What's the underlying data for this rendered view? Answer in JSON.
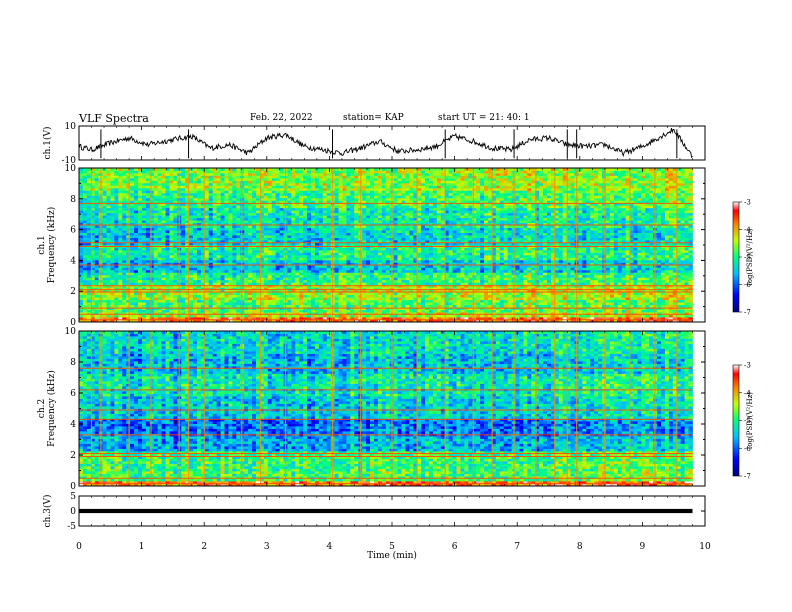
{
  "header": {
    "title": "VLF Spectra",
    "date": "Feb. 22, 2022",
    "station": "station= KAP",
    "start": "start  UT  =   21: 40: 1"
  },
  "chart_data": [
    {
      "type": "line",
      "panel": "ch1-waveform",
      "ylabel": "ch.1(V)",
      "ylim": [
        -10,
        10
      ],
      "y_ticks": [
        "10",
        "-10"
      ],
      "xlim": [
        0,
        10
      ],
      "x_end": 9.8,
      "envelope": {
        "x": [
          0,
          0.2,
          0.5,
          0.8,
          1.1,
          1.5,
          1.8,
          2.1,
          2.4,
          2.7,
          3.0,
          3.3,
          3.6,
          3.9,
          4.2,
          4.5,
          4.8,
          5.1,
          5.4,
          5.7,
          6.0,
          6.3,
          6.6,
          6.9,
          7.2,
          7.5,
          7.8,
          8.1,
          8.4,
          8.7,
          9.0,
          9.3,
          9.5,
          9.8
        ],
        "y": [
          -2,
          -4,
          0,
          3,
          -1,
          2,
          4,
          -3,
          -1,
          -6,
          3,
          5,
          -2,
          -4,
          -6,
          -3,
          1,
          -5,
          -4,
          -2,
          4,
          1,
          -3,
          -4,
          2,
          3,
          -1,
          -2,
          -1,
          -6,
          -2,
          4,
          8,
          -8
        ]
      },
      "spikes_x": [
        0.35,
        1.75,
        4.05,
        5.85,
        6.95,
        7.8,
        7.95,
        9.55
      ]
    },
    {
      "type": "heatmap",
      "panel": "ch1-spectrogram",
      "ylabel": "ch.1\nFrequency (kHz)",
      "ylim": [
        0,
        10
      ],
      "y_ticks": [
        0,
        2,
        4,
        6,
        8,
        10
      ],
      "xlim": [
        0,
        10
      ],
      "x_end": 9.8,
      "colorbar": {
        "range": [
          -7,
          -3
        ],
        "ticks": [
          -7,
          -6,
          -5,
          -4,
          -3
        ],
        "label": "log(PSD)(V²/Hz)"
      },
      "band_levels": [
        {
          "f": [
            0.0,
            0.3
          ],
          "v": -3.8
        },
        {
          "f": [
            0.3,
            0.7
          ],
          "v": -4.6
        },
        {
          "f": [
            0.7,
            1.5
          ],
          "v": -4.9
        },
        {
          "f": [
            1.5,
            2.4
          ],
          "v": -4.6
        },
        {
          "f": [
            2.4,
            3.3
          ],
          "v": -5.1
        },
        {
          "f": [
            3.3,
            4.1
          ],
          "v": -5.6
        },
        {
          "f": [
            4.1,
            5.0
          ],
          "v": -5.2
        },
        {
          "f": [
            5.0,
            6.2
          ],
          "v": -5.5
        },
        {
          "f": [
            6.2,
            7.5
          ],
          "v": -5.3
        },
        {
          "f": [
            7.5,
            8.6
          ],
          "v": -5.0
        },
        {
          "f": [
            8.6,
            10.0
          ],
          "v": -4.7
        }
      ],
      "lines_khz": [
        0.15,
        0.5,
        0.9,
        1.95,
        2.1,
        2.35,
        3.7,
        4.9,
        5.15,
        6.3,
        7.7
      ],
      "spikes_x": [
        0.2,
        0.35,
        0.8,
        1.15,
        1.6,
        1.75,
        2.0,
        2.6,
        2.9,
        3.3,
        4.05,
        4.5,
        5.0,
        5.4,
        5.85,
        6.3,
        6.6,
        6.95,
        7.3,
        7.6,
        7.8,
        7.95,
        8.4,
        8.8,
        9.2,
        9.55
      ]
    },
    {
      "type": "heatmap",
      "panel": "ch2-spectrogram",
      "ylabel": "ch.2\nFrequency (kHz)",
      "ylim": [
        0,
        10
      ],
      "y_ticks": [
        0,
        2,
        4,
        6,
        8,
        10
      ],
      "xlim": [
        0,
        10
      ],
      "x_end": 9.8,
      "colorbar": {
        "range": [
          -7,
          -3
        ],
        "ticks": [
          -7,
          -6,
          -5,
          -4,
          -3
        ],
        "label": "log(PSD)(V²/Hz)"
      },
      "band_levels": [
        {
          "f": [
            0.0,
            0.3
          ],
          "v": -3.8
        },
        {
          "f": [
            0.3,
            1.0
          ],
          "v": -4.9
        },
        {
          "f": [
            1.0,
            2.2
          ],
          "v": -5.0
        },
        {
          "f": [
            2.2,
            3.3
          ],
          "v": -5.7
        },
        {
          "f": [
            3.3,
            4.4
          ],
          "v": -6.0
        },
        {
          "f": [
            4.4,
            5.8
          ],
          "v": -5.5
        },
        {
          "f": [
            5.8,
            7.2
          ],
          "v": -5.3
        },
        {
          "f": [
            7.2,
            8.5
          ],
          "v": -5.6
        },
        {
          "f": [
            8.5,
            10.0
          ],
          "v": -5.4
        }
      ],
      "lines_khz": [
        0.15,
        0.5,
        1.9,
        2.1,
        3.3,
        4.3,
        4.9,
        6.2,
        7.6
      ],
      "spikes_x": [
        0.2,
        0.35,
        0.8,
        1.15,
        1.6,
        1.75,
        2.0,
        2.6,
        2.9,
        3.3,
        4.05,
        4.5,
        5.0,
        5.4,
        5.85,
        6.3,
        6.6,
        6.95,
        7.3,
        7.6,
        7.8,
        7.95,
        8.4,
        8.8,
        9.2,
        9.55
      ]
    },
    {
      "type": "line",
      "panel": "ch3-waveform",
      "ylabel": "ch.3(V)",
      "ylim": [
        -5,
        5
      ],
      "y_ticks": [
        "5",
        "0",
        "-5"
      ],
      "xlim": [
        0,
        10
      ],
      "x_end": 9.8,
      "level": 0,
      "thickness_v": 0.7
    }
  ],
  "x_axis": {
    "label": "Time (min)",
    "ticks": [
      "0",
      "1",
      "2",
      "3",
      "4",
      "5",
      "6",
      "7",
      "8",
      "9",
      "10"
    ]
  }
}
